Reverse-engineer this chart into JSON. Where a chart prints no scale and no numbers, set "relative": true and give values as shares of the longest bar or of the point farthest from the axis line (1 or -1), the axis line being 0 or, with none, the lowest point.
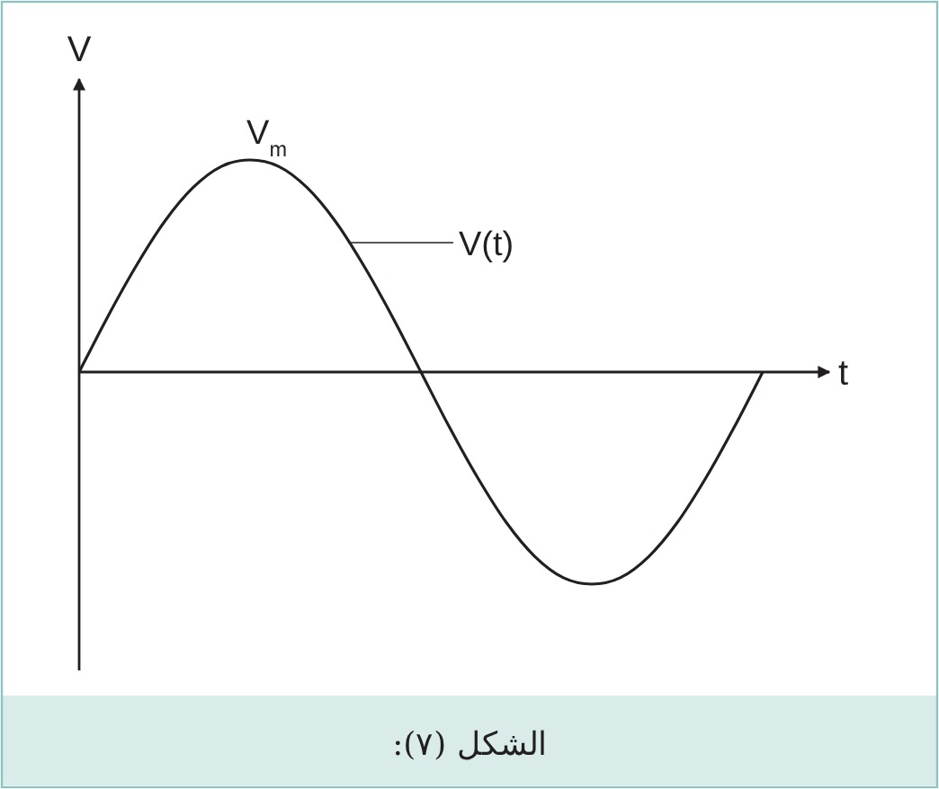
{
  "chart_data": {
    "type": "line",
    "relative": true,
    "xlabel": "t",
    "ylabel": "V",
    "categories": [
      null,
      null,
      null,
      null,
      null,
      null,
      null,
      null,
      null,
      null,
      null,
      null,
      null,
      null,
      null,
      null,
      null,
      null,
      null,
      null,
      null,
      null,
      null,
      null,
      null
    ],
    "series": [
      {
        "color": "#231f20",
        "values": [
          0,
          0.26,
          0.5,
          0.71,
          0.87,
          0.97,
          1,
          0.97,
          0.87,
          0.71,
          0.5,
          0.26,
          0,
          -0.26,
          -0.5,
          -0.71,
          -0.87,
          -0.97,
          -1,
          -0.97,
          -0.87,
          -0.71,
          -0.5,
          -0.26,
          0
        ]
      }
    ],
    "annotations": [
      "V$_{m}$",
      "V(t)",
      "الشكل (٧):"
    ]
  }
}
